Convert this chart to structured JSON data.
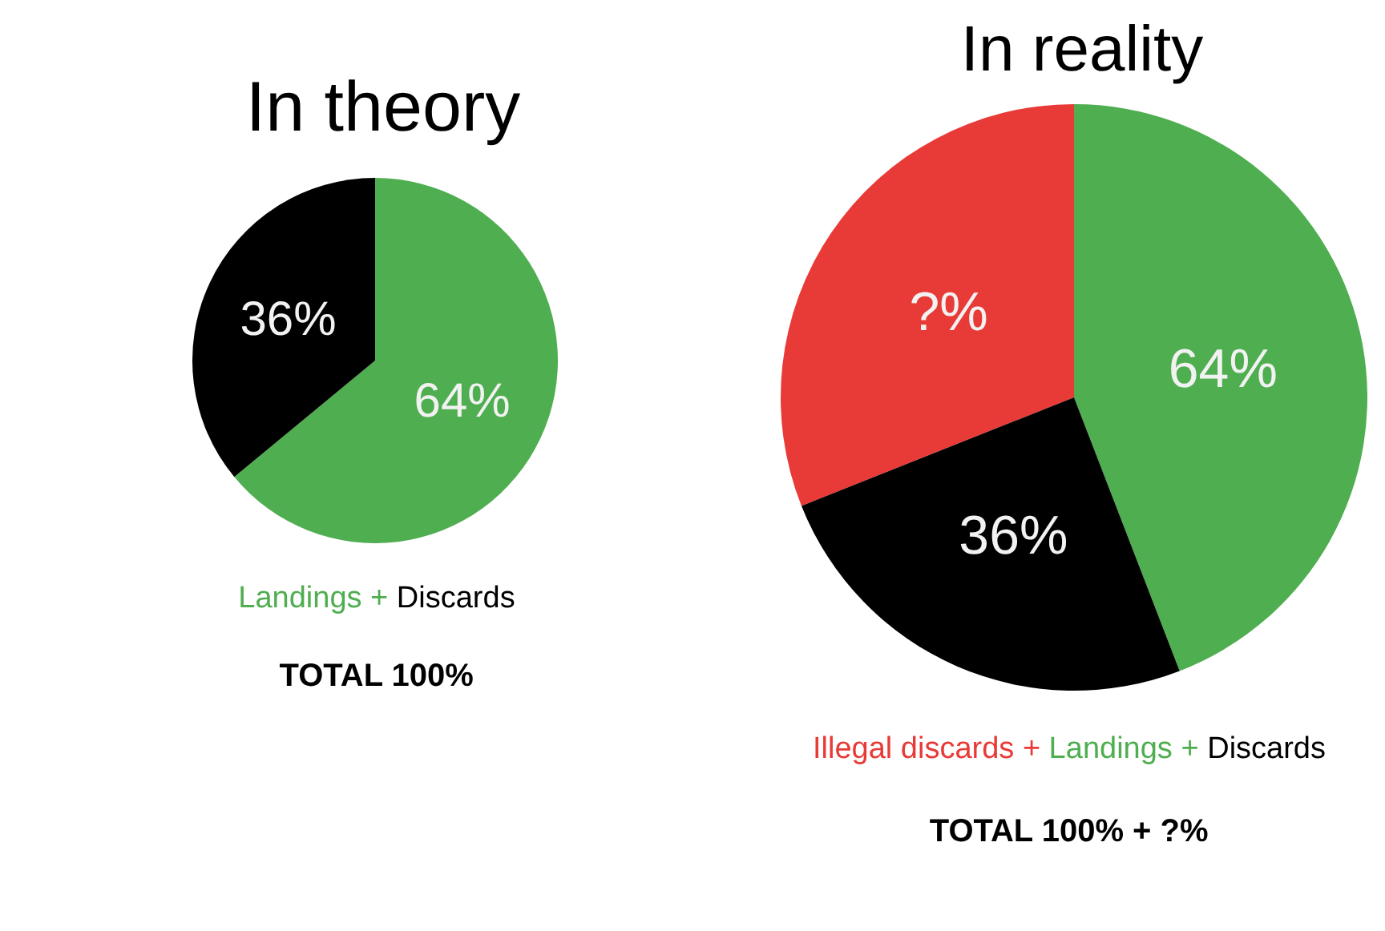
{
  "chart_data": [
    {
      "type": "pie",
      "title": "In theory",
      "categories": [
        null,
        null
      ],
      "values": [
        64,
        36
      ],
      "colors": [
        "#4fae50",
        "#000000"
      ],
      "value_labels": [
        "64%",
        "36%"
      ],
      "annotations": [
        "Landings + Discards",
        "TOTAL 100%"
      ]
    },
    {
      "type": "pie",
      "title": "In reality",
      "categories": [
        null,
        null,
        null
      ],
      "values": [
        45,
        64,
        36
      ],
      "colors": [
        "#e83a36",
        "#4fae50",
        "#000000"
      ],
      "value_labels": [
        "?%",
        "64%",
        "36%"
      ],
      "annotations": [
        "Illegal discards + Landings + Discards",
        "TOTAL 100% + ?%"
      ]
    }
  ]
}
